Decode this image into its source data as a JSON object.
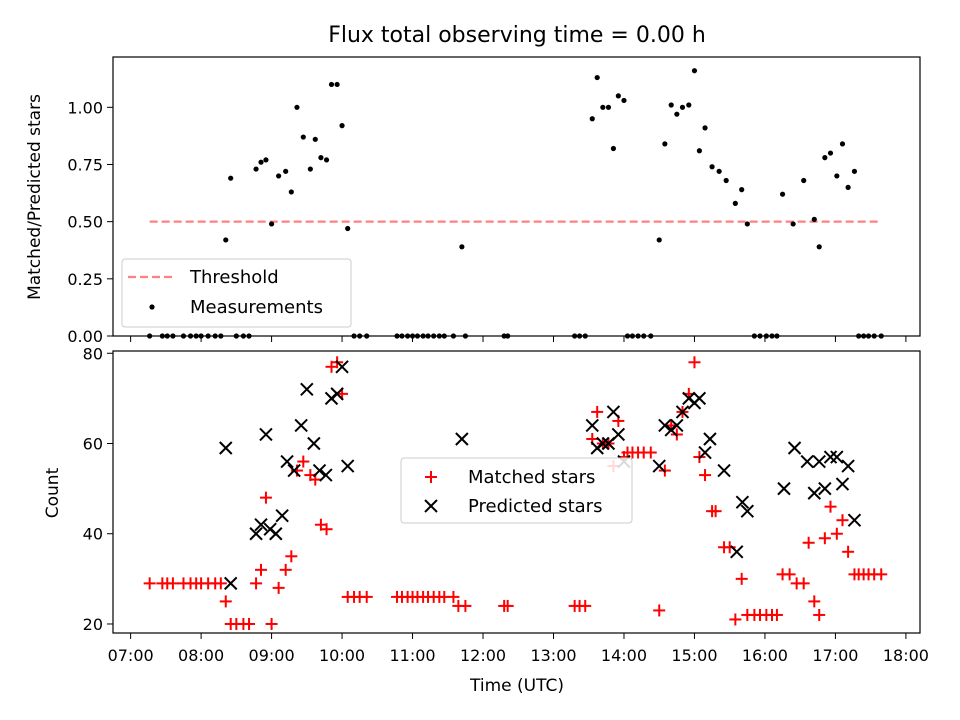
{
  "chart_data": [
    {
      "type": "scatter",
      "title": "Flux total observing time = 0.00 h",
      "xlabel": "",
      "ylabel": "Matched/Predicted stars",
      "x_unit": "hours UTC",
      "xlim": [
        6.75,
        18.2
      ],
      "ylim": [
        0,
        1.22
      ],
      "yticks": [
        0,
        0.25,
        0.5,
        0.75,
        1.0
      ],
      "ytick_labels": [
        "0.00",
        "0.25",
        "0.50",
        "0.75",
        "1.00"
      ],
      "legend": {
        "position": "lower-left",
        "threshold_label": "Threshold",
        "measurements_label": "Measurements"
      },
      "threshold": {
        "value": 0.5,
        "x_start": 7.27,
        "x_end": 17.65,
        "color": "#ff8080"
      },
      "series": [
        {
          "name": "Measurements",
          "color": "#000000",
          "points": [
            [
              7.27,
              0
            ],
            [
              7.45,
              0
            ],
            [
              7.52,
              0
            ],
            [
              7.6,
              0
            ],
            [
              7.75,
              0
            ],
            [
              7.85,
              0
            ],
            [
              7.93,
              0
            ],
            [
              8.0,
              0
            ],
            [
              8.1,
              0
            ],
            [
              8.2,
              0
            ],
            [
              8.28,
              0
            ],
            [
              8.35,
              0.42
            ],
            [
              8.42,
              0.69
            ],
            [
              8.5,
              0
            ],
            [
              8.6,
              0
            ],
            [
              8.68,
              0
            ],
            [
              8.78,
              0.73
            ],
            [
              8.85,
              0.76
            ],
            [
              8.92,
              0.77
            ],
            [
              9.0,
              0.49
            ],
            [
              9.1,
              0.7
            ],
            [
              9.2,
              0.72
            ],
            [
              9.28,
              0.63
            ],
            [
              9.36,
              1.0
            ],
            [
              9.45,
              0.87
            ],
            [
              9.55,
              0.73
            ],
            [
              9.62,
              0.86
            ],
            [
              9.7,
              0.78
            ],
            [
              9.78,
              0.77
            ],
            [
              9.85,
              1.1
            ],
            [
              9.93,
              1.1
            ],
            [
              10.0,
              0.92
            ],
            [
              10.08,
              0.47
            ],
            [
              10.17,
              0
            ],
            [
              10.25,
              0
            ],
            [
              10.35,
              0
            ],
            [
              10.78,
              0
            ],
            [
              10.85,
              0
            ],
            [
              10.93,
              0
            ],
            [
              11.0,
              0
            ],
            [
              11.07,
              0
            ],
            [
              11.15,
              0
            ],
            [
              11.22,
              0
            ],
            [
              11.3,
              0
            ],
            [
              11.38,
              0
            ],
            [
              11.45,
              0
            ],
            [
              11.58,
              0
            ],
            [
              11.7,
              0.39
            ],
            [
              11.75,
              0
            ],
            [
              12.3,
              0
            ],
            [
              12.35,
              0
            ],
            [
              13.3,
              0
            ],
            [
              13.37,
              0
            ],
            [
              13.45,
              0
            ],
            [
              13.55,
              0.95
            ],
            [
              13.62,
              1.13
            ],
            [
              13.7,
              1.0
            ],
            [
              13.78,
              1.0
            ],
            [
              13.85,
              0.82
            ],
            [
              13.92,
              1.05
            ],
            [
              14.0,
              1.03
            ],
            [
              14.05,
              0
            ],
            [
              14.12,
              0
            ],
            [
              14.2,
              0
            ],
            [
              14.28,
              0
            ],
            [
              14.38,
              0
            ],
            [
              14.5,
              0.42
            ],
            [
              14.58,
              0.84
            ],
            [
              14.67,
              1.01
            ],
            [
              14.75,
              0.97
            ],
            [
              14.83,
              1.0
            ],
            [
              14.92,
              1.01
            ],
            [
              15.0,
              1.16
            ],
            [
              15.07,
              0.81
            ],
            [
              15.15,
              0.91
            ],
            [
              15.25,
              0.74
            ],
            [
              15.35,
              0.72
            ],
            [
              15.45,
              0.68
            ],
            [
              15.58,
              0.58
            ],
            [
              15.67,
              0.64
            ],
            [
              15.75,
              0.49
            ],
            [
              15.85,
              0
            ],
            [
              15.93,
              0
            ],
            [
              16.02,
              0
            ],
            [
              16.1,
              0
            ],
            [
              16.17,
              0
            ],
            [
              16.25,
              0.62
            ],
            [
              16.4,
              0.49
            ],
            [
              16.55,
              0.68
            ],
            [
              16.7,
              0.51
            ],
            [
              16.77,
              0.39
            ],
            [
              16.85,
              0.78
            ],
            [
              16.93,
              0.8
            ],
            [
              17.02,
              0.7
            ],
            [
              17.1,
              0.84
            ],
            [
              17.18,
              0.65
            ],
            [
              17.27,
              0.72
            ],
            [
              17.33,
              0
            ],
            [
              17.4,
              0
            ],
            [
              17.47,
              0
            ],
            [
              17.55,
              0
            ],
            [
              17.65,
              0
            ]
          ]
        }
      ]
    },
    {
      "type": "scatter",
      "title": "",
      "xlabel": "Time (UTC)",
      "ylabel": "Count",
      "x_unit": "hours UTC",
      "xlim": [
        6.75,
        18.2
      ],
      "ylim": [
        18,
        80.5
      ],
      "yticks": [
        20,
        40,
        60,
        80
      ],
      "ytick_labels": [
        "20",
        "40",
        "60",
        "80"
      ],
      "xticks": [
        7,
        8,
        9,
        10,
        11,
        12,
        13,
        14,
        15,
        16,
        17,
        18
      ],
      "xtick_labels": [
        "07:00",
        "08:00",
        "09:00",
        "10:00",
        "11:00",
        "12:00",
        "13:00",
        "14:00",
        "15:00",
        "16:00",
        "17:00",
        "18:00"
      ],
      "legend": {
        "position": "center",
        "matched_label": "Matched stars",
        "predicted_label": "Predicted stars"
      },
      "series": [
        {
          "name": "Matched stars",
          "marker": "plus",
          "color": "#ff0000",
          "points": [
            [
              7.27,
              29
            ],
            [
              7.45,
              29
            ],
            [
              7.52,
              29
            ],
            [
              7.6,
              29
            ],
            [
              7.75,
              29
            ],
            [
              7.85,
              29
            ],
            [
              7.93,
              29
            ],
            [
              8.0,
              29
            ],
            [
              8.1,
              29
            ],
            [
              8.2,
              29
            ],
            [
              8.28,
              29
            ],
            [
              8.35,
              25
            ],
            [
              8.42,
              20
            ],
            [
              8.5,
              20
            ],
            [
              8.6,
              20
            ],
            [
              8.68,
              20
            ],
            [
              8.78,
              29
            ],
            [
              8.85,
              32
            ],
            [
              8.92,
              48
            ],
            [
              9.0,
              20
            ],
            [
              9.1,
              28
            ],
            [
              9.2,
              32
            ],
            [
              9.28,
              35
            ],
            [
              9.36,
              54
            ],
            [
              9.45,
              56
            ],
            [
              9.55,
              53
            ],
            [
              9.62,
              52
            ],
            [
              9.7,
              42
            ],
            [
              9.78,
              41
            ],
            [
              9.85,
              77
            ],
            [
              9.93,
              78
            ],
            [
              10.0,
              71
            ],
            [
              10.08,
              26
            ],
            [
              10.17,
              26
            ],
            [
              10.25,
              26
            ],
            [
              10.35,
              26
            ],
            [
              10.78,
              26
            ],
            [
              10.85,
              26
            ],
            [
              10.93,
              26
            ],
            [
              11.0,
              26
            ],
            [
              11.07,
              26
            ],
            [
              11.15,
              26
            ],
            [
              11.22,
              26
            ],
            [
              11.3,
              26
            ],
            [
              11.38,
              26
            ],
            [
              11.45,
              26
            ],
            [
              11.58,
              26
            ],
            [
              11.65,
              24
            ],
            [
              11.75,
              24
            ],
            [
              12.3,
              24
            ],
            [
              12.35,
              24
            ],
            [
              13.3,
              24
            ],
            [
              13.37,
              24
            ],
            [
              13.45,
              24
            ],
            [
              13.55,
              61
            ],
            [
              13.62,
              67
            ],
            [
              13.7,
              60
            ],
            [
              13.78,
              60
            ],
            [
              13.85,
              55
            ],
            [
              13.92,
              65
            ],
            [
              14.0,
              57
            ],
            [
              14.05,
              58
            ],
            [
              14.12,
              58
            ],
            [
              14.2,
              58
            ],
            [
              14.28,
              58
            ],
            [
              14.38,
              58
            ],
            [
              14.5,
              23
            ],
            [
              14.58,
              54
            ],
            [
              14.67,
              64
            ],
            [
              14.75,
              62
            ],
            [
              14.83,
              67
            ],
            [
              14.92,
              71
            ],
            [
              15.0,
              78
            ],
            [
              15.07,
              57
            ],
            [
              15.15,
              53
            ],
            [
              15.25,
              45
            ],
            [
              15.3,
              45
            ],
            [
              15.42,
              37
            ],
            [
              15.5,
              37
            ],
            [
              15.58,
              21
            ],
            [
              15.67,
              30
            ],
            [
              15.75,
              22
            ],
            [
              15.85,
              22
            ],
            [
              15.93,
              22
            ],
            [
              16.02,
              22
            ],
            [
              16.1,
              22
            ],
            [
              16.17,
              22
            ],
            [
              16.25,
              31
            ],
            [
              16.35,
              31
            ],
            [
              16.45,
              29
            ],
            [
              16.55,
              29
            ],
            [
              16.62,
              38
            ],
            [
              16.7,
              25
            ],
            [
              16.77,
              22
            ],
            [
              16.85,
              39
            ],
            [
              16.93,
              46
            ],
            [
              17.02,
              40
            ],
            [
              17.1,
              43
            ],
            [
              17.18,
              36
            ],
            [
              17.27,
              31
            ],
            [
              17.33,
              31
            ],
            [
              17.4,
              31
            ],
            [
              17.47,
              31
            ],
            [
              17.55,
              31
            ],
            [
              17.65,
              31
            ]
          ]
        },
        {
          "name": "Predicted stars",
          "marker": "x",
          "color": "#000000",
          "points": [
            [
              8.35,
              59
            ],
            [
              8.42,
              29
            ],
            [
              8.78,
              40
            ],
            [
              8.85,
              42
            ],
            [
              8.92,
              62
            ],
            [
              8.98,
              41
            ],
            [
              9.06,
              40
            ],
            [
              9.15,
              44
            ],
            [
              9.22,
              56
            ],
            [
              9.32,
              54
            ],
            [
              9.42,
              64
            ],
            [
              9.5,
              72
            ],
            [
              9.6,
              60
            ],
            [
              9.68,
              54
            ],
            [
              9.77,
              53
            ],
            [
              9.85,
              70
            ],
            [
              9.93,
              71
            ],
            [
              10.0,
              77
            ],
            [
              10.08,
              55
            ],
            [
              11.7,
              61
            ],
            [
              13.55,
              64
            ],
            [
              13.62,
              59
            ],
            [
              13.7,
              60
            ],
            [
              13.78,
              60
            ],
            [
              13.85,
              67
            ],
            [
              13.92,
              62
            ],
            [
              14.0,
              56
            ],
            [
              14.5,
              55
            ],
            [
              14.58,
              64
            ],
            [
              14.67,
              63
            ],
            [
              14.75,
              64
            ],
            [
              14.83,
              67
            ],
            [
              14.92,
              70
            ],
            [
              15.0,
              69
            ],
            [
              15.07,
              70
            ],
            [
              15.15,
              58
            ],
            [
              15.22,
              61
            ],
            [
              15.42,
              54
            ],
            [
              15.6,
              36
            ],
            [
              15.68,
              47
            ],
            [
              15.75,
              45
            ],
            [
              16.27,
              50
            ],
            [
              16.42,
              59
            ],
            [
              16.6,
              56
            ],
            [
              16.7,
              49
            ],
            [
              16.77,
              56
            ],
            [
              16.85,
              50
            ],
            [
              16.93,
              57
            ],
            [
              17.02,
              57
            ],
            [
              17.1,
              51
            ],
            [
              17.18,
              55
            ],
            [
              17.27,
              43
            ]
          ]
        }
      ]
    }
  ]
}
